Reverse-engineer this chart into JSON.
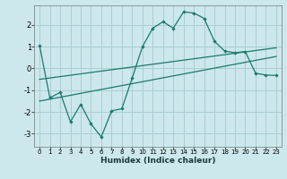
{
  "xlabel": "Humidex (Indice chaleur)",
  "background_color": "#cce8ec",
  "grid_color": "#aacdd4",
  "line_color": "#1a7a6e",
  "xlim": [
    -0.5,
    23.5
  ],
  "ylim": [
    -3.6,
    2.9
  ],
  "xticks": [
    0,
    1,
    2,
    3,
    4,
    5,
    6,
    7,
    8,
    9,
    10,
    11,
    12,
    13,
    14,
    15,
    16,
    17,
    18,
    19,
    20,
    21,
    22,
    23
  ],
  "yticks": [
    -3,
    -2,
    -1,
    0,
    1,
    2
  ],
  "curve_x": [
    0,
    1,
    2,
    3,
    4,
    5,
    6,
    7,
    8,
    9,
    10,
    11,
    12,
    13,
    14,
    15,
    16,
    17,
    18,
    19,
    20,
    21,
    22,
    23
  ],
  "curve_y": [
    1.05,
    -1.35,
    -1.1,
    -2.45,
    -1.65,
    -2.55,
    -3.15,
    -1.95,
    -1.85,
    -0.45,
    1.0,
    1.85,
    2.15,
    1.85,
    2.6,
    2.55,
    2.3,
    1.25,
    0.8,
    0.72,
    0.78,
    -0.22,
    -0.3,
    -0.32
  ],
  "line2_x": [
    0,
    23
  ],
  "line2_y": [
    -1.5,
    0.55
  ],
  "line3_x": [
    0,
    23
  ],
  "line3_y": [
    -0.5,
    0.95
  ]
}
